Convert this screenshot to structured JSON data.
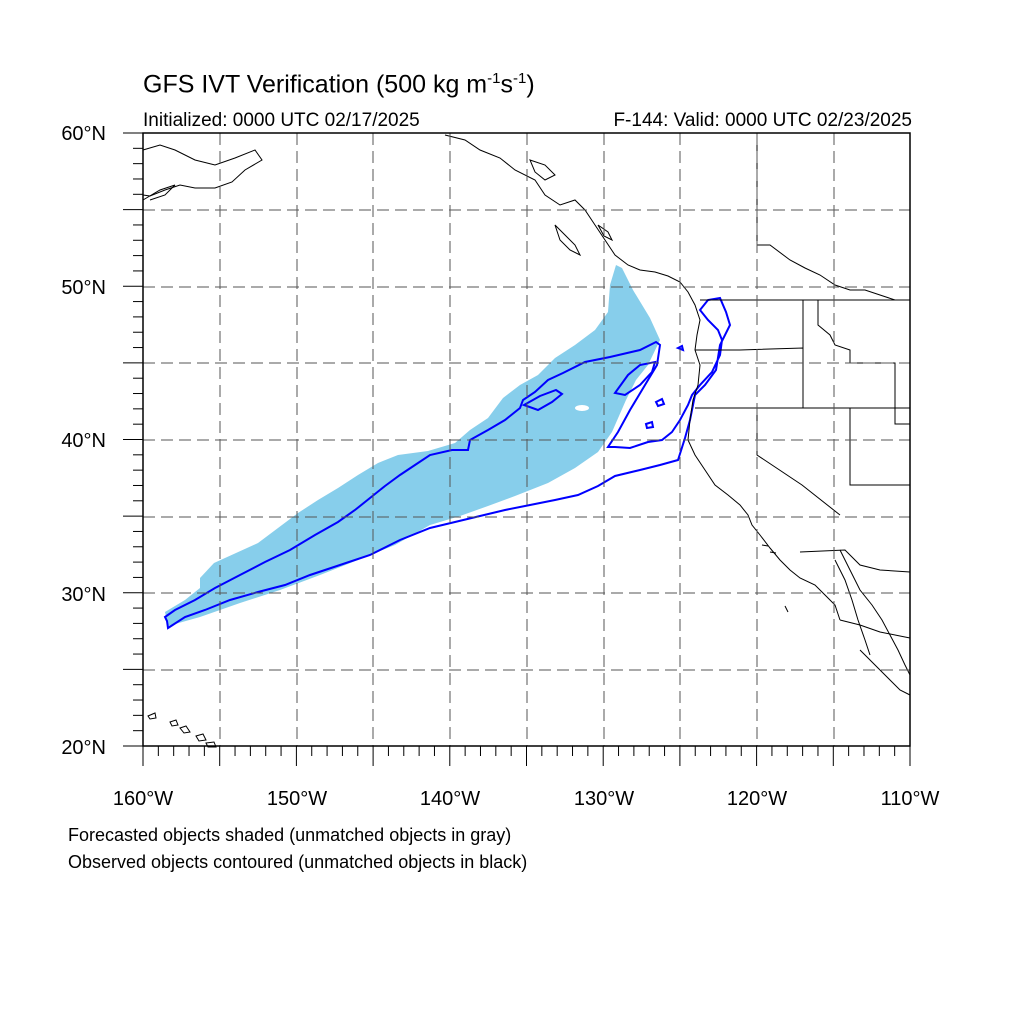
{
  "title": {
    "main": "GFS IVT Verification (500 kg m",
    "exp1": "-1",
    "mid": "s",
    "exp2": "-1",
    "end": ")"
  },
  "initialized": "Initialized: 0000 UTC 02/17/2025",
  "valid": "F-144: Valid: 0000 UTC 02/23/2025",
  "lat_labels": [
    "60°N",
    "50°N",
    "40°N",
    "30°N",
    "20°N"
  ],
  "lon_labels": [
    "160°W",
    "150°W",
    "140°W",
    "130°W",
    "120°W",
    "110°W"
  ],
  "footnotes": {
    "line1": "Forecasted objects shaded (unmatched objects in gray)",
    "line2": "Observed objects contoured (unmatched objects in black)"
  },
  "colors": {
    "forecast_fill": "#87ceeb",
    "observed_contour": "#0000ff",
    "coastline": "#000000",
    "grid": "#555555"
  },
  "map": {
    "projection": "cylindrical equidistant",
    "lon_range": [
      -160,
      -110
    ],
    "lat_range": [
      20,
      60
    ],
    "grid_spacing_deg": 5
  }
}
